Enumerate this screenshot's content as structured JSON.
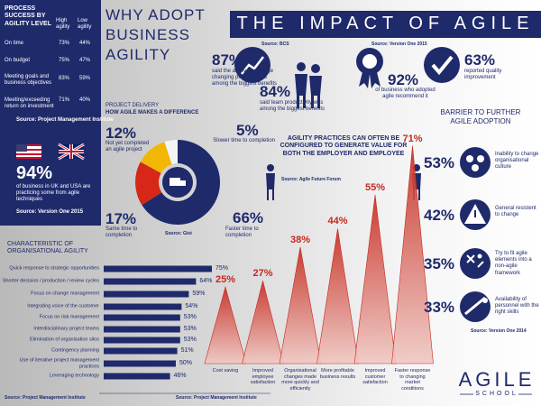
{
  "left_panel": {
    "title": "PROCESS SUCCESS BY AGILITY LEVEL",
    "table": {
      "header": [
        "High agility",
        "Low agility"
      ],
      "rows": [
        [
          "On time",
          "73%",
          "44%"
        ],
        [
          "On budget",
          "75%",
          "47%"
        ],
        [
          "Meeting goals and business objectives",
          "83%",
          "59%"
        ],
        [
          "Meeting/exceeding return on investment",
          "71%",
          "40%"
        ]
      ]
    },
    "source": "Source: Project Management Institute",
    "stat": {
      "value": "94%",
      "text": "of business in UK and USA are practicing some from agile techniques",
      "source": "Source: Version One 2015"
    }
  },
  "header": {
    "title": "WHY ADOPT BUSINESS AGILITY",
    "banner": "THE IMPACT OF AGILE"
  },
  "stats": {
    "sources": [
      "Source: BCS",
      "Source: Version One 2015"
    ],
    "items": [
      {
        "value": "87%",
        "text": "said the ability to manage changing priorities was among the biggest benefits"
      },
      {
        "value": "84%",
        "text": "said team productivity was among the biggest benefits"
      },
      {
        "value": "92%",
        "text": "of business who adopted agile recommend it"
      },
      {
        "value": "63%",
        "text": "reported quality improvement"
      }
    ]
  },
  "callout": {
    "text": "AGILITY PRACTICES CAN OFTEN BE CONFIGURED TO GENERATE VALUE FOR BOTH THE EMPLOYER AND EMPLOYEE",
    "source": "Source: Agile Future Forum"
  },
  "barriers": {
    "title": "BARRIER TO FURTHER AGILE ADOPTION",
    "items": [
      {
        "value": "53%",
        "text": "Inability to change organisational culture"
      },
      {
        "value": "42%",
        "text": "General resistent to change"
      },
      {
        "value": "35%",
        "text": "Try to fit agile elements into a non-agile framework"
      },
      {
        "value": "33%",
        "text": "Availability of personnel with the right skills"
      }
    ],
    "source": "Source: Version One 2014"
  },
  "logo": {
    "name": "AGILE",
    "sub": "SCHOOL"
  },
  "chart_data": [
    {
      "type": "pie",
      "title": "PROJECT DELIVERY",
      "subtitle": "HOW AGILE MAKES A DIFFERENCE",
      "categories": [
        "Faster time to completion",
        "Same time to completion",
        "Not yet completed an agile project",
        "Slower time to completion"
      ],
      "values": [
        66,
        17,
        12,
        5
      ],
      "value_labels": [
        "66%",
        "17%",
        "12%",
        "5%"
      ],
      "colors": [
        "#1f2a6b",
        "#d62718",
        "#f2b705",
        "#f4f4f4"
      ],
      "source": "Source: Gist"
    },
    {
      "type": "triangle",
      "categories": [
        "Cost saving",
        "Improved employee satisfaction",
        "Organisational changes made more quickly and efficiently",
        "More profitable business results",
        "Improved customer satisfaction",
        "Faster response to changing market conditions"
      ],
      "values": [
        25,
        27,
        38,
        44,
        55,
        71
      ],
      "value_labels": [
        "25%",
        "27%",
        "38%",
        "44%",
        "55%",
        "71%"
      ],
      "color": "#c62a1e",
      "source": "Source: Project Management Institute"
    },
    {
      "type": "hbar",
      "title": "CHARACTERISTIC OF ORGANISATIONAL AGILITY",
      "categories": [
        "Quick response to strategic opportunities",
        "Shorter decision / production / review cycles",
        "Focus on change management",
        "Integrating voice of the customer",
        "Focus on risk management",
        "Interdisciplinary project teams",
        "Elimination of organisation silos",
        "Contingency planning",
        "Use of iterative project management practices",
        "Leveraging technology"
      ],
      "values": [
        75,
        64,
        59,
        54,
        53,
        53,
        53,
        51,
        50,
        46
      ],
      "value_labels": [
        "75%",
        "64%",
        "59%",
        "54%",
        "53%",
        "53%",
        "53%",
        "51%",
        "50%",
        "46%"
      ],
      "color": "#1f2a6b",
      "source": "Source: Project Management Institute"
    }
  ]
}
